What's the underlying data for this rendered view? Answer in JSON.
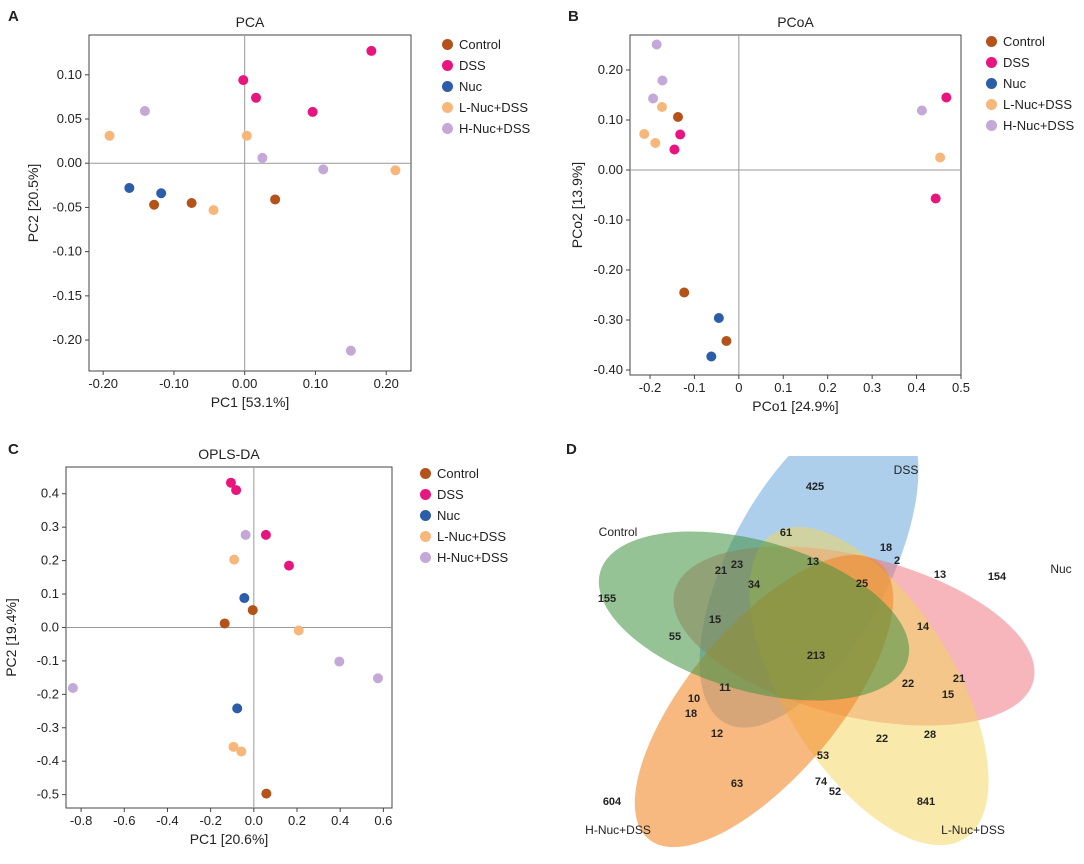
{
  "panels": {
    "a": "A",
    "b": "B",
    "c": "C",
    "d": "D"
  },
  "legend": {
    "items": [
      {
        "label": "Control",
        "color": "#b4521a"
      },
      {
        "label": "DSS",
        "color": "#e8157f"
      },
      {
        "label": "Nuc",
        "color": "#2c5da8"
      },
      {
        "label": "L-Nuc+DSS",
        "color": "#f7b77a"
      },
      {
        "label": "H-Nuc+DSS",
        "color": "#c4a8d8"
      }
    ]
  },
  "chart_data": [
    {
      "type": "scatter",
      "title": "PCA",
      "xlabel": "PC1 [53.1%]",
      "ylabel": "PC2 [20.5%]",
      "xlim": [
        -0.22,
        0.235
      ],
      "ylim": [
        -0.235,
        0.145
      ],
      "xticks": [
        -0.2,
        -0.1,
        0.0,
        0.1,
        0.2
      ],
      "xtick_labels": [
        "-0.20",
        "-0.10",
        "0.00",
        "0.10",
        "0.20"
      ],
      "yticks": [
        0.1,
        0.05,
        0.0,
        -0.05,
        -0.1,
        -0.15,
        -0.2
      ],
      "ytick_labels": [
        "0.10",
        "0.05",
        "0.00",
        "-0.05",
        "-0.10",
        "-0.15",
        "-0.20"
      ],
      "series": [
        {
          "name": "Control",
          "points": [
            [
              -0.128,
              -0.047
            ],
            [
              -0.075,
              -0.045
            ],
            [
              0.043,
              -0.041
            ]
          ]
        },
        {
          "name": "DSS",
          "points": [
            [
              -0.002,
              0.094
            ],
            [
              0.016,
              0.074
            ],
            [
              0.096,
              0.058
            ],
            [
              0.179,
              0.127
            ]
          ]
        },
        {
          "name": "Nuc",
          "points": [
            [
              -0.163,
              -0.028
            ],
            [
              -0.118,
              -0.034
            ]
          ]
        },
        {
          "name": "L-Nuc+DSS",
          "points": [
            [
              -0.191,
              0.031
            ],
            [
              0.003,
              0.031
            ],
            [
              -0.044,
              -0.053
            ],
            [
              0.213,
              -0.008
            ]
          ]
        },
        {
          "name": "H-Nuc+DSS",
          "points": [
            [
              -0.141,
              0.059
            ],
            [
              0.025,
              0.006
            ],
            [
              0.111,
              -0.007
            ],
            [
              0.15,
              -0.212
            ]
          ]
        }
      ]
    },
    {
      "type": "scatter",
      "title": "PCoA",
      "xlabel": "PCo1 [24.9%]",
      "ylabel": "PCo2 [13.9%]",
      "xlim": [
        -0.245,
        0.5
      ],
      "ylim": [
        -0.41,
        0.27
      ],
      "xticks": [
        -0.2,
        -0.1,
        0.0,
        0.1,
        0.2,
        0.3,
        0.4,
        0.5
      ],
      "xtick_labels": [
        "-0.2",
        "-0.1",
        "0",
        "0.1",
        "0.2",
        "0.3",
        "0.4",
        "0.5"
      ],
      "yticks": [
        0.2,
        0.1,
        0.0,
        -0.1,
        -0.2,
        -0.3,
        -0.4
      ],
      "ytick_labels": [
        "0.20",
        "0.10",
        "0.00",
        "-0.10",
        "-0.20",
        "-0.30",
        "-0.40"
      ],
      "series": [
        {
          "name": "Control",
          "points": [
            [
              -0.137,
              0.106
            ],
            [
              -0.123,
              -0.245
            ],
            [
              -0.028,
              -0.342
            ]
          ]
        },
        {
          "name": "DSS",
          "points": [
            [
              -0.132,
              0.071
            ],
            [
              -0.145,
              0.041
            ],
            [
              0.467,
              0.145
            ],
            [
              0.443,
              -0.057
            ]
          ]
        },
        {
          "name": "Nuc",
          "points": [
            [
              -0.045,
              -0.296
            ],
            [
              -0.062,
              -0.373
            ]
          ]
        },
        {
          "name": "L-Nuc+DSS",
          "points": [
            [
              -0.173,
              0.126
            ],
            [
              -0.213,
              0.072
            ],
            [
              -0.188,
              0.054
            ],
            [
              0.453,
              0.025
            ]
          ]
        },
        {
          "name": "H-Nuc+DSS",
          "points": [
            [
              -0.185,
              0.251
            ],
            [
              -0.172,
              0.179
            ],
            [
              -0.193,
              0.143
            ],
            [
              0.412,
              0.119
            ]
          ]
        }
      ]
    },
    {
      "type": "scatter",
      "title": "OPLS-DA",
      "xlabel": "PC1 [20.6%]",
      "ylabel": "PC2 [19.4%]",
      "xlim": [
        -0.87,
        0.64
      ],
      "ylim": [
        -0.54,
        0.48
      ],
      "xticks": [
        -0.8,
        -0.6,
        -0.4,
        -0.2,
        0.0,
        0.2,
        0.4,
        0.6
      ],
      "xtick_labels": [
        "-0.8",
        "-0.6",
        "-0.4",
        "-0.2",
        "0.0",
        "0.2",
        "0.4",
        "0.6"
      ],
      "yticks": [
        0.4,
        0.3,
        0.2,
        0.1,
        0.0,
        -0.1,
        -0.2,
        -0.3,
        -0.4,
        -0.5
      ],
      "ytick_labels": [
        "0.4",
        "0.3",
        "0.2",
        "0.1",
        "0.0",
        "-0.1",
        "-0.2",
        "-0.3",
        "-0.4",
        "-0.5"
      ],
      "series": [
        {
          "name": "Control",
          "points": [
            [
              -0.005,
              0.052
            ],
            [
              -0.135,
              0.012
            ],
            [
              0.058,
              -0.497
            ]
          ]
        },
        {
          "name": "DSS",
          "points": [
            [
              -0.106,
              0.433
            ],
            [
              -0.082,
              0.411
            ],
            [
              0.056,
              0.277
            ],
            [
              0.163,
              0.185
            ]
          ]
        },
        {
          "name": "Nuc",
          "points": [
            [
              -0.044,
              0.088
            ],
            [
              -0.077,
              -0.242
            ]
          ]
        },
        {
          "name": "L-Nuc+DSS",
          "points": [
            [
              -0.091,
              0.203
            ],
            [
              0.208,
              -0.009
            ],
            [
              -0.094,
              -0.357
            ],
            [
              -0.058,
              -0.371
            ]
          ]
        },
        {
          "name": "H-Nuc+DSS",
          "points": [
            [
              -0.038,
              0.277
            ],
            [
              0.396,
              -0.102
            ],
            [
              0.575,
              -0.152
            ],
            [
              -0.838,
              -0.181
            ]
          ]
        }
      ]
    },
    {
      "type": "venn",
      "sets": [
        "Control",
        "DSS",
        "Nuc",
        "L-Nuc+DSS",
        "H-Nuc+DSS"
      ],
      "set_colors": [
        "#3f9140",
        "#5e9fd8",
        "#ee6e78",
        "#f3d65a",
        "#f28b2c"
      ],
      "region_counts": [
        "425",
        "154",
        "841",
        "604",
        "155",
        "61",
        "18",
        "2",
        "13",
        "21",
        "23",
        "13",
        "34",
        "25",
        "55",
        "15",
        "14",
        "213",
        "11",
        "10",
        "18",
        "22",
        "15",
        "21",
        "12",
        "53",
        "22",
        "28",
        "63",
        "74",
        "52"
      ]
    }
  ]
}
